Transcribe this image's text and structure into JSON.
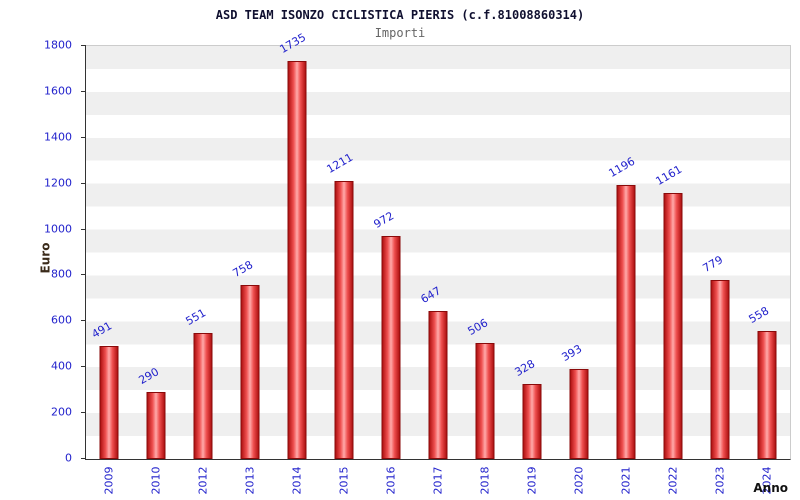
{
  "chart_data": {
    "type": "bar",
    "title": "ASD TEAM ISONZO CICLISTICA PIERIS (c.f.81008860314)",
    "subtitle": "Importi",
    "xlabel": "Anno",
    "ylabel": "Euro",
    "categories": [
      "2009",
      "2010",
      "2012",
      "2013",
      "2014",
      "2015",
      "2016",
      "2017",
      "2018",
      "2019",
      "2020",
      "2021",
      "2022",
      "2023",
      "2024"
    ],
    "values": [
      491,
      290,
      551,
      758,
      1735,
      1211,
      972,
      647,
      506,
      328,
      393,
      1196,
      1161,
      779,
      558
    ],
    "ylim": [
      0,
      1800
    ],
    "ytick_step": 200,
    "grid": "alternating-bands",
    "legend": "none",
    "bar_color": "#d02020",
    "value_label_color": "#2222cc",
    "tick_label_color": "#2222cc"
  }
}
